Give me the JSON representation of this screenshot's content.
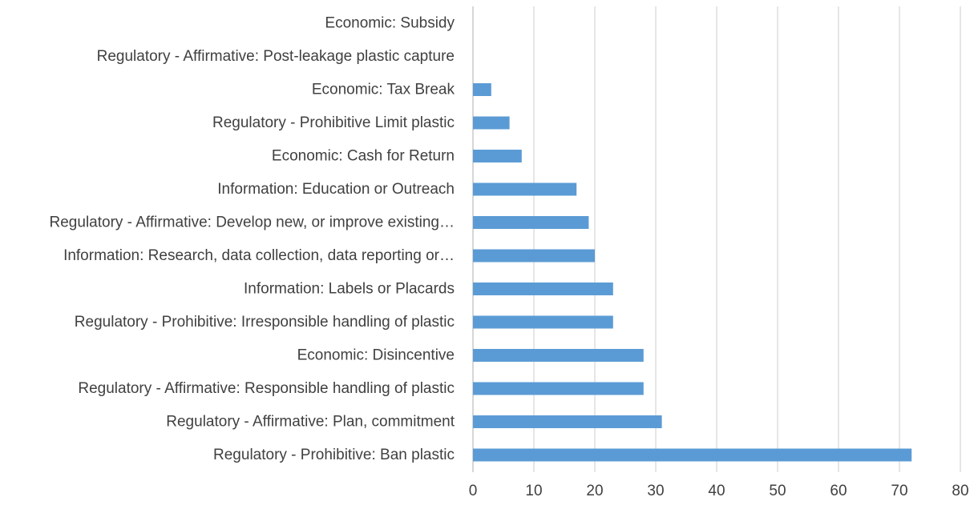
{
  "chart_data": {
    "type": "bar",
    "orientation": "horizontal",
    "title": "",
    "xlabel": "",
    "ylabel": "",
    "categories": [
      "Economic: Subsidy",
      "Regulatory - Affirmative: Post-leakage plastic capture",
      "Economic: Tax Break",
      "Regulatory - Prohibitive Limit plastic",
      "Economic: Cash for Return",
      "Information: Education or Outreach",
      "Regulatory - Affirmative: Develop new, or improve existing…",
      "Information: Research, data collection, data reporting or…",
      "Information: Labels or Placards",
      "Regulatory - Prohibitive: Irresponsible handling of plastic",
      "Economic: Disincentive ",
      "Regulatory - Affirmative: Responsible handling of plastic",
      "Regulatory - Affirmative: Plan, commitment",
      "Regulatory - Prohibitive: Ban plastic"
    ],
    "values": [
      0,
      0,
      3,
      6,
      8,
      17,
      19,
      20,
      23,
      23,
      28,
      28,
      31,
      72
    ],
    "xlim": [
      0,
      80
    ],
    "xticks": [
      "0",
      "10",
      "20",
      "30",
      "40",
      "50",
      "60",
      "70",
      "80"
    ],
    "grid": true,
    "legend": "none",
    "bar_color": "#5b9bd5"
  }
}
